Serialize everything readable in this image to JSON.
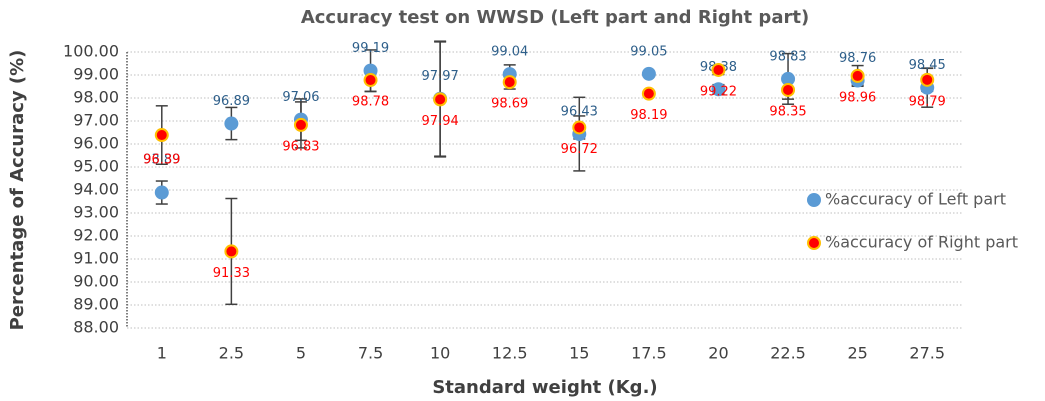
{
  "chart_data": {
    "type": "scatter",
    "title": "Accuracy test on WWSD (Left part and Right part)",
    "x_label": "Standard weight (Kg.)",
    "y_label": "Percentage of Accuracy (%)",
    "categories": [
      "1",
      "2.5",
      "5",
      "7.5",
      "10",
      "12.5",
      "15",
      "17.5",
      "20",
      "22.5",
      "25",
      "27.5"
    ],
    "series": [
      {
        "name": "%accuracy of Left part",
        "color": "#5b9bd5",
        "label_color": "#2e5f8a",
        "values": [
          93.89,
          96.89,
          97.06,
          99.19,
          97.97,
          99.04,
          96.43,
          99.05,
          98.38,
          98.83,
          98.76,
          98.45
        ],
        "errors": [
          0.5,
          0.7,
          0.9,
          0.9,
          2.5,
          0.4,
          1.6,
          0,
          0.2,
          1.1,
          0.2,
          0.85
        ]
      },
      {
        "name": "%accuracy of Right part",
        "color": "#ff0000",
        "edge_color": "#ffc000",
        "label_color": "#ff0000",
        "values": [
          96.39,
          91.33,
          96.83,
          98.78,
          97.94,
          98.69,
          96.72,
          98.19,
          99.22,
          98.35,
          98.96,
          98.79
        ],
        "errors": [
          1.27,
          2.3,
          1.0,
          0.5,
          2.5,
          0.3,
          0.5,
          0,
          0.2,
          0.4,
          0.45,
          0.5
        ]
      }
    ],
    "ylim": [
      88,
      100
    ],
    "yticks": [
      {
        "value": 88,
        "label": "88.00"
      },
      {
        "value": 89,
        "label": "89.00"
      },
      {
        "value": 90,
        "label": "90.00"
      },
      {
        "value": 91,
        "label": "91.00"
      },
      {
        "value": 92,
        "label": "92.00"
      },
      {
        "value": 93,
        "label": "93.00"
      },
      {
        "value": 94,
        "label": "94.00"
      },
      {
        "value": 95,
        "label": "95.00"
      },
      {
        "value": 96,
        "label": "96.00"
      },
      {
        "value": 97,
        "label": "97.00"
      },
      {
        "value": 98,
        "label": "98.00"
      },
      {
        "value": 99,
        "label": "99.00"
      },
      {
        "value": 100,
        "label": "100.00"
      }
    ],
    "grid": true,
    "legend": "right"
  }
}
